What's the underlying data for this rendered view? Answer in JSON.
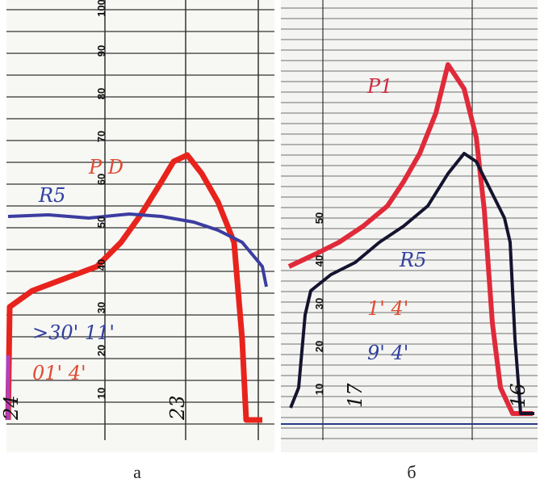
{
  "panels": [
    {
      "caption": "а",
      "scale": [
        "10",
        "20",
        "30",
        "40",
        "50",
        "60",
        "70",
        "80",
        "90",
        "100"
      ],
      "notes": [
        "24",
        "23",
        "P D",
        "R5",
        ">30' 11'",
        "01' 4'"
      ]
    },
    {
      "caption": "б",
      "scale": [
        "10",
        "20",
        "30",
        "40",
        "50"
      ],
      "notes": [
        "P1",
        "R5",
        "1' 4'",
        "9' 4'",
        "17",
        "16"
      ]
    }
  ]
}
